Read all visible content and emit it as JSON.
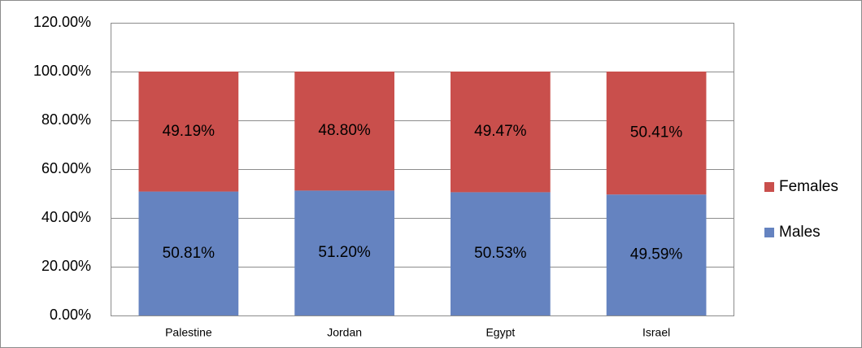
{
  "chart_data": {
    "type": "stacked_bar",
    "categories": [
      "Palestine",
      "Jordan",
      "Egypt",
      "Israel"
    ],
    "series": [
      {
        "name": "Males",
        "color": "#6583c0",
        "values": [
          50.81,
          51.2,
          50.53,
          49.59
        ],
        "value_labels": [
          "50.81%",
          "51.20%",
          "50.53%",
          "49.59%"
        ]
      },
      {
        "name": "Females",
        "color": "#c94f4c",
        "values": [
          49.19,
          48.8,
          49.47,
          50.41
        ],
        "value_labels": [
          "49.19%",
          "48.80%",
          "49.47%",
          "50.41%"
        ]
      }
    ],
    "ylim": [
      0,
      120
    ],
    "yticks": [
      {
        "value": 0,
        "label": "0.00%"
      },
      {
        "value": 20,
        "label": "20.00%"
      },
      {
        "value": 40,
        "label": "40.00%"
      },
      {
        "value": 60,
        "label": "60.00%"
      },
      {
        "value": 80,
        "label": "80.00%"
      },
      {
        "value": 100,
        "label": "100.00%"
      },
      {
        "value": 120,
        "label": "120.00%"
      }
    ],
    "grid": true,
    "legend": "right"
  }
}
